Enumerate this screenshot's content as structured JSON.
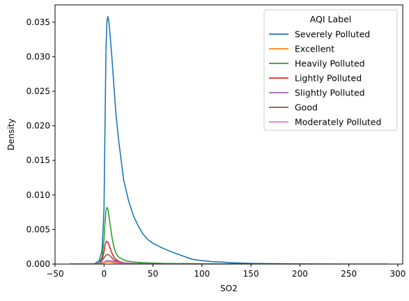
{
  "chart_data": {
    "type": "line",
    "kind": "kde",
    "xlabel": "SO2",
    "ylabel": "Density",
    "xlim": [
      -50,
      305
    ],
    "ylim": [
      0,
      0.0375
    ],
    "xticks": [
      -50,
      0,
      50,
      100,
      150,
      200,
      250,
      300
    ],
    "xtick_labels": [
      "−50",
      "0",
      "50",
      "100",
      "150",
      "200",
      "250",
      "300"
    ],
    "yticks": [
      0,
      0.005,
      0.01,
      0.015,
      0.02,
      0.025,
      0.03,
      0.035
    ],
    "ytick_labels": [
      "0.000",
      "0.005",
      "0.010",
      "0.015",
      "0.020",
      "0.025",
      "0.030",
      "0.035"
    ],
    "grid": false,
    "legend": {
      "title": "AQI Label",
      "placement": "top-right"
    },
    "series": [
      {
        "name": "Severely Polluted",
        "color": "#1f77b4",
        "x": [
          -35,
          -10,
          -5,
          -2,
          0,
          1,
          2,
          3,
          4,
          5,
          6,
          8,
          10,
          12,
          15,
          18,
          20,
          25,
          30,
          35,
          40,
          45,
          50,
          60,
          70,
          80,
          90,
          100,
          110,
          120,
          130,
          150,
          200,
          250,
          290
        ],
        "y": [
          0,
          0,
          0.0005,
          0.002,
          0.008,
          0.02,
          0.031,
          0.0352,
          0.0358,
          0.035,
          0.0335,
          0.03,
          0.026,
          0.022,
          0.0178,
          0.0145,
          0.0122,
          0.0092,
          0.007,
          0.0055,
          0.0043,
          0.0035,
          0.003,
          0.0023,
          0.0017,
          0.0012,
          0.0007,
          0.0005,
          0.00035,
          0.0003,
          0.0002,
          0.0001,
          2e-05,
          0,
          0
        ]
      },
      {
        "name": "Excellent",
        "color": "#ff7f0e",
        "x": [
          -35,
          -5,
          0,
          3,
          5,
          10,
          20,
          40,
          80
        ],
        "y": [
          0,
          5e-05,
          0.0002,
          0.0003,
          0.0003,
          0.0002,
          0.0001,
          3e-05,
          0
        ]
      },
      {
        "name": "Heavily Polluted",
        "color": "#2ca02c",
        "x": [
          -35,
          -10,
          -5,
          -2,
          0,
          1,
          2,
          3,
          4,
          5,
          6,
          8,
          10,
          12,
          15,
          20,
          25,
          30,
          40,
          60,
          100,
          150,
          200
        ],
        "y": [
          0,
          0,
          0.0002,
          0.001,
          0.0035,
          0.006,
          0.0078,
          0.0082,
          0.0079,
          0.007,
          0.006,
          0.004,
          0.0025,
          0.0016,
          0.001,
          0.0006,
          0.0004,
          0.0003,
          0.0002,
          0.0001,
          3e-05,
          1e-05,
          0
        ]
      },
      {
        "name": "Lightly Polluted",
        "color": "#d62728",
        "x": [
          -35,
          -10,
          -5,
          -2,
          0,
          1,
          2,
          3,
          4,
          5,
          6,
          8,
          10,
          12,
          15,
          20,
          25,
          30,
          40,
          60,
          100
        ],
        "y": [
          0,
          0,
          0.0001,
          0.0006,
          0.0018,
          0.0027,
          0.0032,
          0.0033,
          0.0031,
          0.0028,
          0.0024,
          0.0016,
          0.001,
          0.0007,
          0.0004,
          0.0002,
          0.00012,
          8e-05,
          4e-05,
          1e-05,
          0
        ]
      },
      {
        "name": "Slightly Polluted",
        "color": "#9467bd",
        "x": [
          -35,
          -10,
          -5,
          0,
          3,
          5,
          10,
          15,
          20,
          30,
          50,
          80
        ],
        "y": [
          0,
          0,
          0.0001,
          0.0003,
          0.0005,
          0.0005,
          0.0004,
          0.0003,
          0.0002,
          0.0001,
          3e-05,
          0
        ]
      },
      {
        "name": "Good",
        "color": "#8c564b",
        "x": [
          -35,
          -10,
          -5,
          -2,
          0,
          2,
          4,
          6,
          8,
          10,
          15,
          20,
          30,
          50,
          80
        ],
        "y": [
          0,
          0,
          0.0001,
          0.0005,
          0.0009,
          0.0013,
          0.0014,
          0.0012,
          0.0009,
          0.0006,
          0.0003,
          0.00015,
          5e-05,
          1e-05,
          0
        ]
      },
      {
        "name": "Moderately Polluted",
        "color": "#e377c2",
        "x": [
          -35,
          -10,
          -5,
          0,
          3,
          6,
          10,
          15,
          20,
          30,
          50,
          80
        ],
        "y": [
          0,
          0,
          0.0001,
          0.0003,
          0.0004,
          0.0004,
          0.0003,
          0.0002,
          0.00012,
          5e-05,
          1e-05,
          0
        ]
      }
    ]
  }
}
